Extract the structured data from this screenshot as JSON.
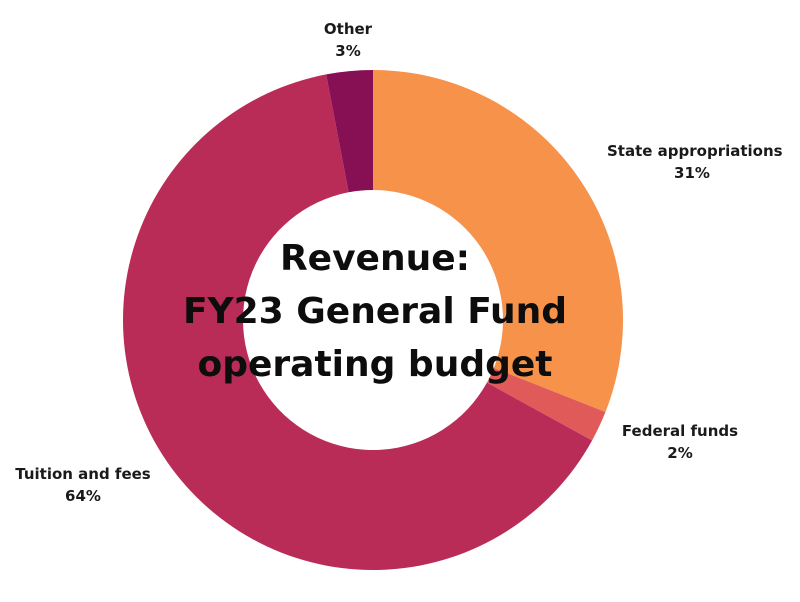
{
  "chart_data": {
    "type": "pie",
    "donut": true,
    "title_lines": [
      "Revenue:",
      "FY23 General Fund",
      "operating budget"
    ],
    "slices": [
      {
        "label": "State appropriations",
        "value_label": "31%",
        "value": 31,
        "color": "#f7924a"
      },
      {
        "label": "Federal funds",
        "value_label": "2%",
        "value": 2,
        "color": "#e05a5a"
      },
      {
        "label": "Tuition and fees",
        "value_label": "64%",
        "value": 64,
        "color": "#b92c58"
      },
      {
        "label": "Other",
        "value_label": "3%",
        "value": 3,
        "color": "#870f54"
      }
    ],
    "legend": "none"
  }
}
